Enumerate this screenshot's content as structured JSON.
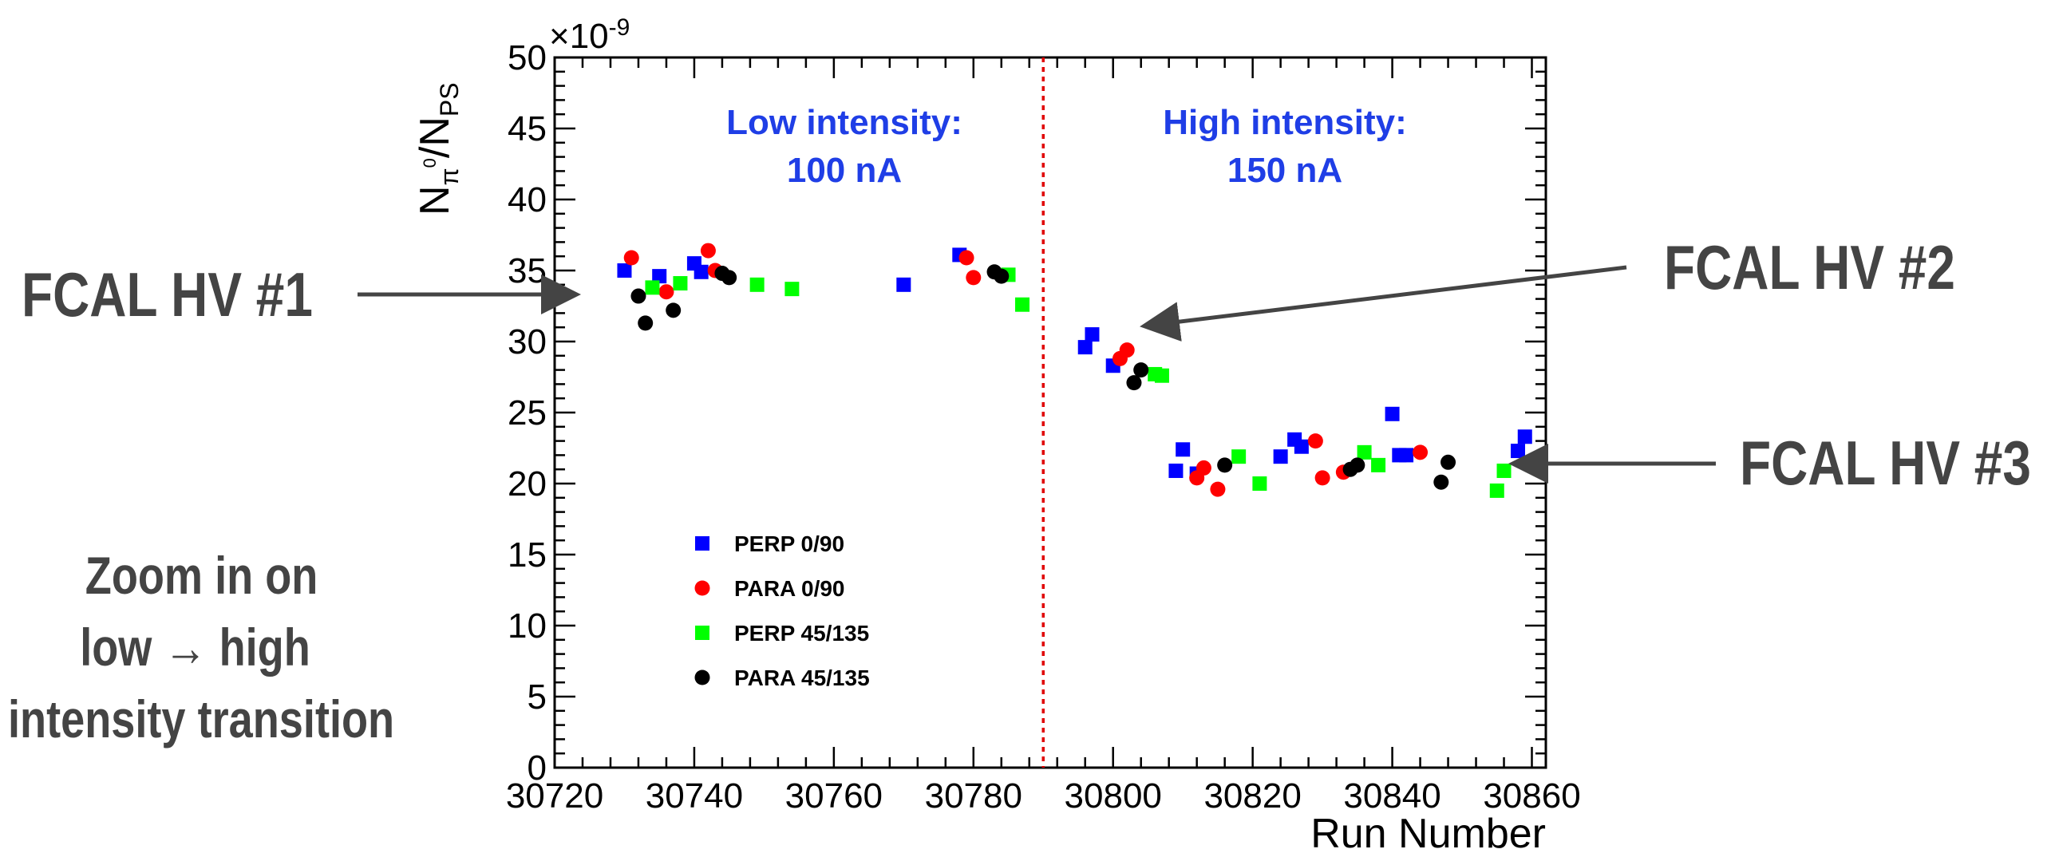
{
  "chart_data": {
    "type": "scatter",
    "title": "",
    "xlabel": "Run Number",
    "ylabel_main": "N",
    "ylabel_sub_num": "π",
    "ylabel_sup": "0",
    "ylabel_den": "N",
    "ylabel_den_sub": "PS",
    "y_exponent_label": "×10",
    "y_exponent_power": "-9",
    "xlim": [
      30720,
      30862
    ],
    "ylim": [
      0,
      50
    ],
    "x_ticks": [
      30720,
      30740,
      30760,
      30780,
      30800,
      30820,
      30840,
      30860
    ],
    "y_ticks": [
      0,
      5,
      10,
      15,
      20,
      25,
      30,
      35,
      40,
      45,
      50
    ],
    "x_tick_labels": [
      "30720",
      "30740",
      "30760",
      "30780",
      "30800",
      "30820",
      "30840",
      "30860"
    ],
    "y_tick_labels": [
      "0",
      "5",
      "10",
      "15",
      "20",
      "25",
      "30",
      "35",
      "40",
      "45",
      "50"
    ],
    "grid": false,
    "legend_position": "lower-left",
    "divider_x": 30790,
    "divider_color": "#e00000",
    "region_labels": [
      {
        "line1": "Low intensity:",
        "line2": "100 nA",
        "color": "#1f3ee6"
      },
      {
        "line1": "High intensity:",
        "line2": "150 nA",
        "color": "#1f3ee6"
      }
    ],
    "series": [
      {
        "name": "PERP 0/90",
        "marker": "square",
        "color": "#0000ff",
        "points": [
          [
            30730,
            35.0
          ],
          [
            30735,
            34.6
          ],
          [
            30740,
            35.5
          ],
          [
            30741,
            34.9
          ],
          [
            30770,
            34.0
          ],
          [
            30778,
            36.1
          ],
          [
            30796,
            29.6
          ],
          [
            30797,
            30.5
          ],
          [
            30800,
            28.3
          ],
          [
            30810,
            22.4
          ],
          [
            30812,
            20.7
          ],
          [
            30809,
            20.9
          ],
          [
            30824,
            21.9
          ],
          [
            30826,
            23.1
          ],
          [
            30827,
            22.6
          ],
          [
            30840,
            24.9
          ],
          [
            30841,
            22.0
          ],
          [
            30842,
            22.0
          ],
          [
            30858,
            22.3
          ],
          [
            30859,
            23.3
          ]
        ]
      },
      {
        "name": "PARA 0/90",
        "marker": "circle",
        "color": "#ff0000",
        "points": [
          [
            30731,
            35.9
          ],
          [
            30736,
            33.5
          ],
          [
            30742,
            36.4
          ],
          [
            30743,
            35.0
          ],
          [
            30779,
            35.9
          ],
          [
            30780,
            34.5
          ],
          [
            30801,
            28.8
          ],
          [
            30802,
            29.4
          ],
          [
            30812,
            20.4
          ],
          [
            30813,
            21.1
          ],
          [
            30815,
            19.6
          ],
          [
            30829,
            23.0
          ],
          [
            30830,
            20.4
          ],
          [
            30833,
            20.8
          ],
          [
            30844,
            22.2
          ]
        ]
      },
      {
        "name": "PERP 45/135",
        "marker": "square",
        "color": "#00ff00",
        "points": [
          [
            30734,
            33.8
          ],
          [
            30738,
            34.1
          ],
          [
            30749,
            34.0
          ],
          [
            30754,
            33.7
          ],
          [
            30785,
            34.7
          ],
          [
            30787,
            32.6
          ],
          [
            30806,
            27.7
          ],
          [
            30807,
            27.6
          ],
          [
            30818,
            21.9
          ],
          [
            30821,
            20.0
          ],
          [
            30836,
            22.2
          ],
          [
            30838,
            21.3
          ],
          [
            30855,
            19.5
          ],
          [
            30856,
            20.9
          ]
        ]
      },
      {
        "name": "PARA 45/135",
        "marker": "circle",
        "color": "#000000",
        "points": [
          [
            30732,
            33.2
          ],
          [
            30733,
            31.3
          ],
          [
            30737,
            32.2
          ],
          [
            30744,
            34.8
          ],
          [
            30745,
            34.5
          ],
          [
            30783,
            34.9
          ],
          [
            30784,
            34.6
          ],
          [
            30803,
            27.1
          ],
          [
            30804,
            28.0
          ],
          [
            30816,
            21.3
          ],
          [
            30834,
            21.0
          ],
          [
            30835,
            21.3
          ],
          [
            30847,
            20.1
          ],
          [
            30848,
            21.5
          ]
        ]
      }
    ]
  },
  "annotations": {
    "hv1": "FCAL HV #1",
    "hv2": "FCAL HV #2",
    "hv3": "FCAL HV #3",
    "zoom_line1": "Zoom in on",
    "zoom_line2": "low → high",
    "zoom_line3": "intensity transition",
    "text_color": "#444444"
  }
}
